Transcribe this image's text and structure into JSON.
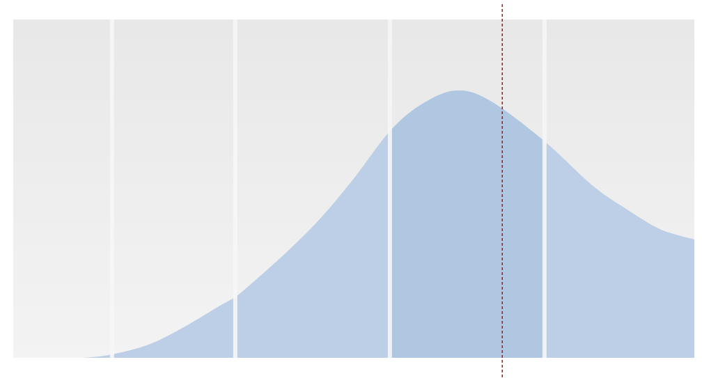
{
  "chart_data": {
    "type": "area",
    "title": "",
    "xlabel": "",
    "ylabel": "",
    "xlim": [
      0,
      1
    ],
    "ylim": [
      0,
      1
    ],
    "grid": "vertical-band-separators",
    "legend": "none",
    "bands": [
      {
        "from": 0.0,
        "to": 0.145
      },
      {
        "from": 0.145,
        "to": 0.326
      },
      {
        "from": 0.326,
        "to": 0.553
      },
      {
        "from": 0.553,
        "to": 0.78
      },
      {
        "from": 0.78,
        "to": 1.0
      }
    ],
    "highlighted_band_index": 3,
    "series": [
      {
        "x": [
          0.0,
          0.05,
          0.1,
          0.145,
          0.2,
          0.25,
          0.3,
          0.326,
          0.35,
          0.4,
          0.45,
          0.5,
          0.553,
          0.6,
          0.65,
          0.7,
          0.78,
          0.85,
          0.9,
          0.95,
          1.0
        ],
        "y": [
          0.0,
          0.0,
          0.0,
          0.01,
          0.04,
          0.09,
          0.15,
          0.18,
          0.22,
          0.31,
          0.41,
          0.53,
          0.67,
          0.75,
          0.79,
          0.76,
          0.64,
          0.51,
          0.44,
          0.38,
          0.35
        ]
      }
    ],
    "marker_line": {
      "x": 0.718,
      "style": "dashed"
    },
    "colors": {
      "background_top": "#e8e8e8",
      "background_bottom": "#f3f3f3",
      "area_fill": "#bccfe6",
      "area_fill_highlight": "#b0c7e2",
      "band_separator": "#f6f6f6",
      "marker_line": "#9c1c1c"
    }
  }
}
